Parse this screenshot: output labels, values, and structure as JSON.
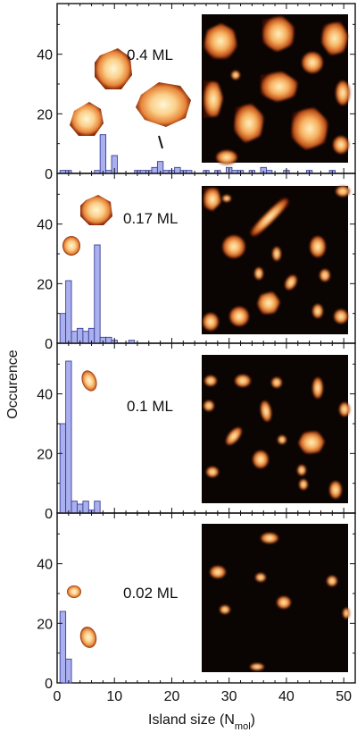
{
  "figure": {
    "ylabel": "Occurence",
    "xlabel_main": "Island size (N",
    "xlabel_sub": "mol",
    "xlabel_close": ")",
    "x_ticks": [
      "0",
      "10",
      "20",
      "30",
      "40",
      "50"
    ],
    "y_ticks": [
      "0",
      "20",
      "40"
    ],
    "xlim": [
      0,
      52
    ],
    "ylim": [
      0,
      57
    ]
  },
  "colors": {
    "bar_fill": "#aab0ee",
    "bar_stroke": "#3a3f9a",
    "stm_background": "#0a0402",
    "island_core": "#fff2c4",
    "island_mid": "#f4a85a",
    "island_edge": "#8a2a0c"
  },
  "chart_data": [
    {
      "type": "bar",
      "coverage_label": "0.4 ML",
      "bin_width": 1,
      "x": [
        1,
        2,
        7,
        8,
        9,
        10,
        14,
        15,
        16,
        17,
        18,
        19,
        20,
        21,
        22,
        23,
        26,
        28,
        30,
        31,
        32,
        34,
        36,
        37,
        40,
        44,
        48
      ],
      "values": [
        1,
        1,
        1,
        13,
        1,
        6,
        1,
        1,
        1,
        2,
        4,
        1,
        1,
        2,
        1,
        1,
        1,
        1,
        2,
        1,
        1,
        1,
        2,
        1,
        1,
        1,
        1
      ],
      "ylim": [
        0,
        57
      ]
    },
    {
      "type": "bar",
      "coverage_label": "0.17 ML",
      "bin_width": 1,
      "x": [
        1,
        2,
        3,
        4,
        5,
        6,
        7,
        8,
        9,
        10,
        13
      ],
      "values": [
        10,
        21,
        4,
        5,
        4,
        5,
        33,
        2,
        2,
        1,
        1
      ],
      "ylim": [
        0,
        57
      ]
    },
    {
      "type": "bar",
      "coverage_label": "0.1 ML",
      "bin_width": 1,
      "x": [
        1,
        2,
        3,
        4,
        5,
        6,
        7
      ],
      "values": [
        30,
        51,
        4,
        3,
        4,
        1,
        4
      ],
      "ylim": [
        0,
        57
      ]
    },
    {
      "type": "bar",
      "coverage_label": "0.02 ML",
      "bin_width": 1,
      "x": [
        1,
        2
      ],
      "values": [
        24,
        8
      ],
      "ylim": [
        0,
        57
      ]
    }
  ]
}
